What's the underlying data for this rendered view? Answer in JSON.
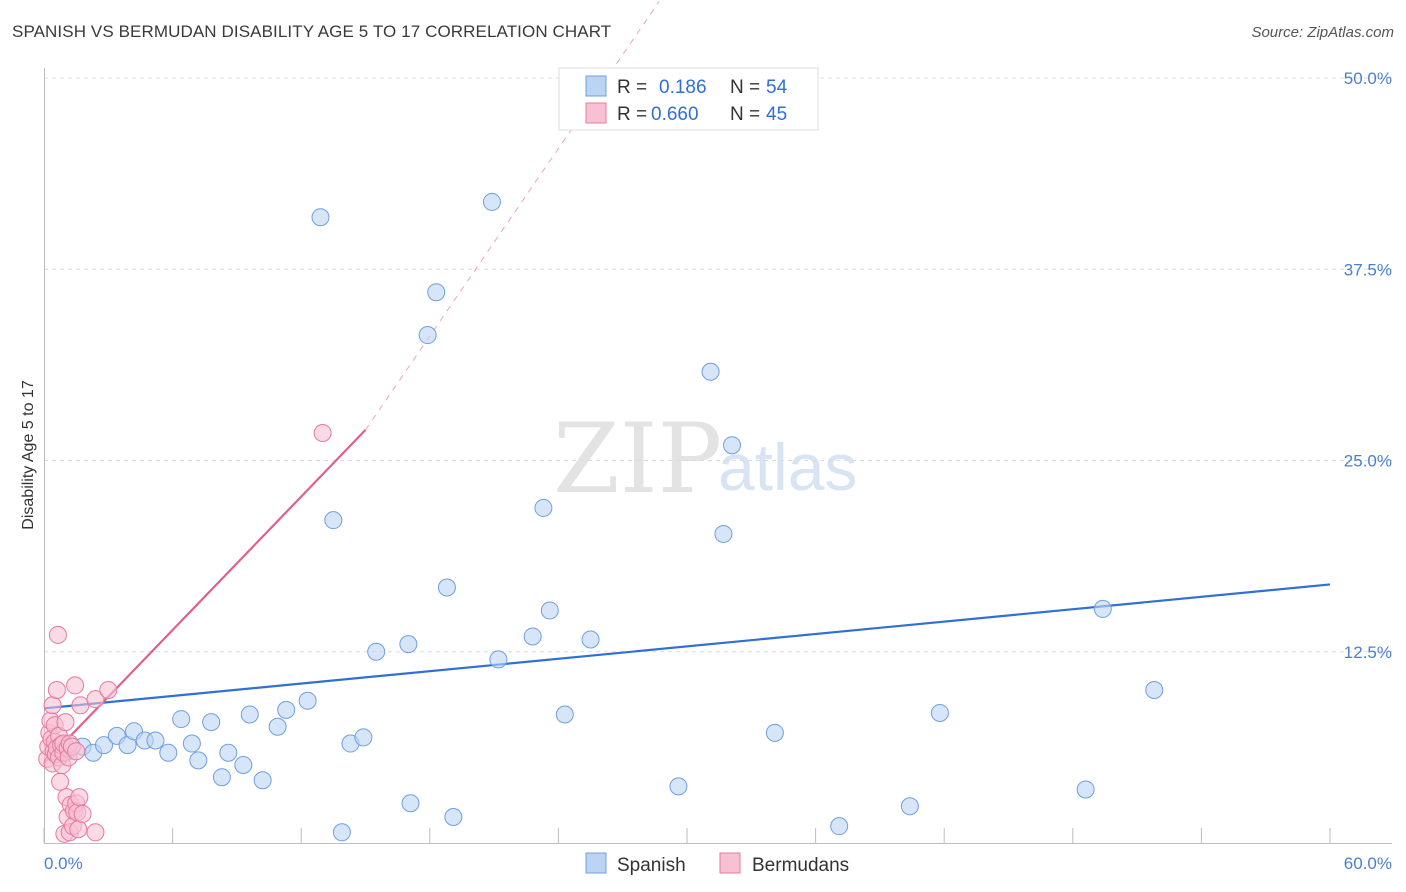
{
  "title": "SPANISH VS BERMUDAN DISABILITY AGE 5 TO 17 CORRELATION CHART",
  "source": "Source: ZipAtlas.com",
  "watermark": {
    "zip": "ZIP",
    "atlas": "atlas"
  },
  "colors": {
    "spanish": "#6f9fe0",
    "spanish_fill": "#bcd3f3",
    "spanish_line": "#2f6fd6",
    "bermudan": "#e8799e",
    "bermudan_fill": "#f6c2d3",
    "bermudan_line": "#e0608a",
    "grid": "#dcdcdc",
    "tick_label": "#4a7fd0"
  },
  "legend_box": [
    {
      "series": "spanish",
      "r_label": "R =",
      "r_value": "0.186",
      "n_label": "N =",
      "n_value": "54"
    },
    {
      "series": "bermudan",
      "r_label": "R =",
      "r_value": "0.660",
      "n_label": "N =",
      "n_value": "45"
    }
  ],
  "bottom_legend": [
    {
      "series": "spanish",
      "label": "Spanish"
    },
    {
      "series": "bermudan",
      "label": "Bermudans"
    }
  ],
  "chart_data": {
    "type": "scatter",
    "title": "SPANISH VS BERMUDAN DISABILITY AGE 5 TO 17 CORRELATION CHART",
    "xlabel": "",
    "ylabel": "Disability Age 5 to 17",
    "xlim": [
      0,
      60
    ],
    "ylim": [
      0,
      50
    ],
    "x_tick_labels": [
      "0.0%",
      "60.0%"
    ],
    "y_ticks": [
      12.5,
      25.0,
      37.5,
      50.0
    ],
    "y_tick_labels": [
      "12.5%",
      "25.0%",
      "37.5%",
      "50.0%"
    ],
    "grid": true,
    "series": [
      {
        "name": "Spanish",
        "r": 0.186,
        "n": 54,
        "trend": {
          "x": [
            0,
            60
          ],
          "y": [
            8.8,
            16.9
          ],
          "dashed_extension": false
        },
        "points": [
          [
            0.7,
            5.9
          ],
          [
            0.9,
            6.1
          ],
          [
            1.1,
            6.0
          ],
          [
            1.8,
            6.3
          ],
          [
            2.3,
            5.9
          ],
          [
            2.8,
            6.4
          ],
          [
            3.4,
            7.0
          ],
          [
            3.9,
            6.4
          ],
          [
            4.2,
            7.3
          ],
          [
            4.7,
            6.7
          ],
          [
            5.2,
            6.7
          ],
          [
            5.8,
            5.9
          ],
          [
            6.4,
            8.1
          ],
          [
            6.9,
            6.5
          ],
          [
            7.2,
            5.4
          ],
          [
            7.8,
            7.9
          ],
          [
            8.3,
            4.3
          ],
          [
            8.6,
            5.9
          ],
          [
            9.3,
            5.1
          ],
          [
            9.6,
            8.4
          ],
          [
            10.2,
            4.1
          ],
          [
            10.9,
            7.6
          ],
          [
            11.3,
            8.7
          ],
          [
            12.3,
            9.3
          ],
          [
            12.9,
            40.9
          ],
          [
            13.5,
            21.1
          ],
          [
            13.9,
            0.7
          ],
          [
            14.3,
            6.5
          ],
          [
            14.9,
            6.9
          ],
          [
            15.5,
            12.5
          ],
          [
            17.0,
            13.0
          ],
          [
            17.1,
            2.6
          ],
          [
            17.9,
            33.2
          ],
          [
            18.3,
            36.0
          ],
          [
            18.8,
            16.7
          ],
          [
            19.1,
            1.7
          ],
          [
            20.9,
            41.9
          ],
          [
            21.2,
            12.0
          ],
          [
            22.8,
            13.5
          ],
          [
            23.3,
            21.9
          ],
          [
            23.6,
            15.2
          ],
          [
            24.3,
            8.4
          ],
          [
            25.5,
            13.3
          ],
          [
            29.6,
            3.7
          ],
          [
            31.1,
            30.8
          ],
          [
            31.7,
            20.2
          ],
          [
            32.1,
            26.0
          ],
          [
            34.1,
            7.2
          ],
          [
            37.1,
            1.1
          ],
          [
            40.4,
            2.4
          ],
          [
            41.8,
            8.5
          ],
          [
            48.6,
            3.5
          ],
          [
            49.4,
            15.3
          ],
          [
            51.8,
            10.0
          ]
        ]
      },
      {
        "name": "Bermudans",
        "r": 0.66,
        "n": 45,
        "trend": {
          "x": [
            0,
            15.0
          ],
          "y": [
            5.2,
            27.0
          ],
          "dashed_extension": true,
          "dash_to": [
            28.7,
            55.0
          ]
        },
        "points": [
          [
            0.15,
            5.5
          ],
          [
            0.2,
            6.3
          ],
          [
            0.25,
            7.2
          ],
          [
            0.3,
            8.0
          ],
          [
            0.35,
            6.8
          ],
          [
            0.4,
            9.0
          ],
          [
            0.4,
            5.2
          ],
          [
            0.45,
            6.0
          ],
          [
            0.5,
            7.7
          ],
          [
            0.5,
            6.6
          ],
          [
            0.55,
            5.8
          ],
          [
            0.6,
            10.0
          ],
          [
            0.6,
            6.2
          ],
          [
            0.65,
            13.6
          ],
          [
            0.7,
            5.6
          ],
          [
            0.7,
            7.0
          ],
          [
            0.75,
            4.0
          ],
          [
            0.8,
            6.4
          ],
          [
            0.85,
            5.1
          ],
          [
            0.9,
            5.9
          ],
          [
            0.9,
            6.5
          ],
          [
            0.95,
            0.6
          ],
          [
            1.0,
            7.9
          ],
          [
            1.05,
            3.0
          ],
          [
            1.1,
            6.2
          ],
          [
            1.1,
            1.7
          ],
          [
            1.15,
            5.6
          ],
          [
            1.2,
            6.5
          ],
          [
            1.2,
            0.7
          ],
          [
            1.25,
            2.5
          ],
          [
            1.3,
            6.3
          ],
          [
            1.35,
            1.1
          ],
          [
            1.4,
            2.1
          ],
          [
            1.45,
            10.3
          ],
          [
            1.5,
            2.6
          ],
          [
            1.5,
            6.0
          ],
          [
            1.55,
            2.0
          ],
          [
            1.6,
            0.9
          ],
          [
            1.65,
            3.0
          ],
          [
            1.7,
            9.0
          ],
          [
            1.8,
            1.9
          ],
          [
            2.4,
            9.4
          ],
          [
            2.4,
            0.7
          ],
          [
            3.0,
            10.0
          ],
          [
            13.0,
            26.8
          ]
        ]
      }
    ]
  }
}
